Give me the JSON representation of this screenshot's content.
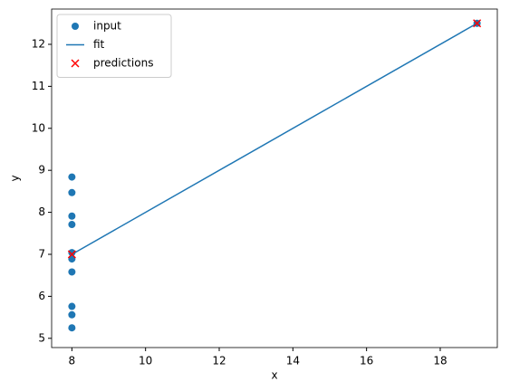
{
  "chart_data": {
    "type": "scatter",
    "xlabel": "x",
    "ylabel": "y",
    "xlim": [
      7.45,
      19.55
    ],
    "ylim": [
      4.78,
      12.84
    ],
    "xticks": [
      8,
      10,
      12,
      14,
      16,
      18
    ],
    "yticks": [
      5,
      6,
      7,
      8,
      9,
      10,
      11,
      12
    ],
    "legend": "upper left",
    "series": [
      {
        "name": "input",
        "color": "#1f77b4",
        "marker": "circle",
        "x": [
          8,
          8,
          8,
          8,
          8,
          8,
          8,
          19,
          8,
          8,
          8
        ],
        "values": [
          6.58,
          5.76,
          7.71,
          8.84,
          8.47,
          7.04,
          5.25,
          12.5,
          5.56,
          7.91,
          6.89
        ]
      },
      {
        "name": "fit",
        "color": "#1f77b4",
        "marker": "line",
        "x": [
          8,
          19
        ],
        "values": [
          7.0,
          12.5
        ]
      },
      {
        "name": "predictions",
        "color": "#ff0000",
        "marker": "x",
        "x": [
          8,
          19
        ],
        "values": [
          7.0,
          12.5
        ]
      }
    ]
  }
}
